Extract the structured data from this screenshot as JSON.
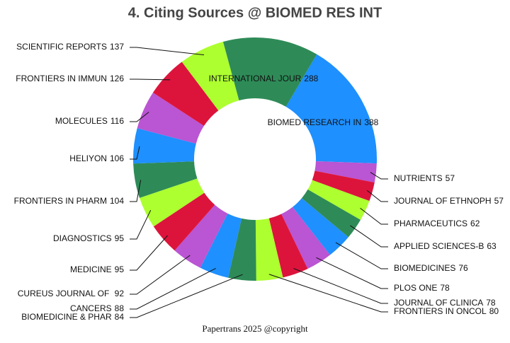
{
  "chart_data": {
    "type": "donut",
    "title": "4. Citing Sources @ BIOMED RES INT",
    "footer": "Papertrans 2025 @copyright",
    "categories": [
      "BIOMED RESEARCH IN",
      "NUTRIENTS",
      "JOURNAL OF ETHNOPH",
      "PHARMACEUTICS",
      "APPLIED SCIENCES-B",
      "BIOMEDICINES",
      "PLOS ONE",
      "JOURNAL OF CLINICA",
      "FRONTIERS IN ONCOL",
      "BIOMEDICINE & PHAR",
      "CANCERS",
      "CUREUS JOURNAL OF ",
      "MEDICINE",
      "DIAGNOSTICS",
      "FRONTIERS IN PHARM",
      "HELIYON",
      "MOLECULES",
      "FRONTIERS IN IMMUN",
      "SCIENTIFIC REPORTS",
      "INTERNATIONAL JOUR"
    ],
    "values": [
      388,
      57,
      57,
      62,
      63,
      76,
      78,
      78,
      80,
      84,
      88,
      92,
      95,
      95,
      104,
      106,
      116,
      126,
      137,
      288
    ],
    "colors": [
      "#1e90ff",
      "#ba55d3",
      "#dc143c",
      "#adff2f",
      "#2e8b57",
      "#1e90ff",
      "#ba55d3",
      "#dc143c",
      "#adff2f",
      "#2e8b57",
      "#1e90ff",
      "#ba55d3",
      "#dc143c",
      "#adff2f",
      "#2e8b57",
      "#1e90ff",
      "#ba55d3",
      "#dc143c",
      "#adff2f",
      "#2e8b57"
    ]
  }
}
